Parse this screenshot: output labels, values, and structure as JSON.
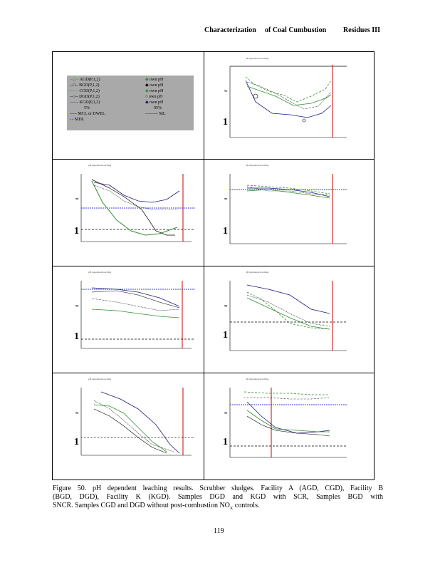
{
  "header": {
    "part1": "Characterization",
    "part2": "of Coal Cumbustion",
    "part3": "Residues III"
  },
  "legend": {
    "col1": [
      "AGD(P,1,2)",
      "BGD(P,1,2)",
      "CGD(P,1,2)",
      "DGD(P,1,2)",
      "KGD(P,1,2)",
      "5%",
      "MCL or DWEL",
      "MDL"
    ],
    "col2": [
      "own pH",
      "own pH",
      "own pH",
      "own pH",
      "own pH",
      "95%",
      "ML"
    ]
  },
  "panel_title_left": "pH dependent leaching",
  "caption": {
    "line1": "Figure  50. pH  dependent  leaching  results.  Scrubber  sludges.  Facility  A  (AGD,  CGD),  Facility  B",
    "line2": "(BGD,  DGD),  Facility  K  (KGD).  Samples  DGD  and  KGD  with  SCR,  Samples  BGD  with",
    "line3": "SNCR.   Samples   CGD   and   DGD  without   post-combustion    NO",
    "line3_sub": "X",
    "line3_end": " controls."
  },
  "page_number": "119",
  "colors": {
    "green": "#2f8f2f",
    "navy": "#1a1a80",
    "red": "#cc0000",
    "blue": "#0000cc",
    "legend_bg": "#a9a9a9"
  }
}
